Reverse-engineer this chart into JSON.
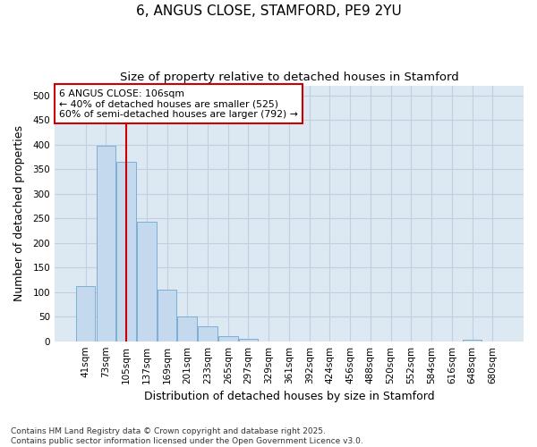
{
  "title": "6, ANGUS CLOSE, STAMFORD, PE9 2YU",
  "subtitle": "Size of property relative to detached houses in Stamford",
  "xlabel": "Distribution of detached houses by size in Stamford",
  "ylabel": "Number of detached properties",
  "categories": [
    "41sqm",
    "73sqm",
    "105sqm",
    "137sqm",
    "169sqm",
    "201sqm",
    "233sqm",
    "265sqm",
    "297sqm",
    "329sqm",
    "361sqm",
    "392sqm",
    "424sqm",
    "456sqm",
    "488sqm",
    "520sqm",
    "552sqm",
    "584sqm",
    "616sqm",
    "648sqm",
    "680sqm"
  ],
  "values": [
    112,
    397,
    365,
    243,
    105,
    50,
    30,
    10,
    5,
    0,
    0,
    0,
    0,
    0,
    0,
    0,
    0,
    0,
    0,
    3,
    0
  ],
  "bar_color": "#c5d9ee",
  "bar_edge_color": "#7bafd4",
  "vertical_line_x": 2.0,
  "vertical_line_color": "#cc0000",
  "annotation_text": "6 ANGUS CLOSE: 106sqm\n← 40% of detached houses are smaller (525)\n60% of semi-detached houses are larger (792) →",
  "annotation_box_facecolor": "#ffffff",
  "annotation_box_edgecolor": "#cc0000",
  "ylim": [
    0,
    520
  ],
  "yticks": [
    0,
    50,
    100,
    150,
    200,
    250,
    300,
    350,
    400,
    450,
    500
  ],
  "grid_color": "#c0d0e0",
  "plot_bg_color": "#dce8f2",
  "fig_bg_color": "#ffffff",
  "footer_text": "Contains HM Land Registry data © Crown copyright and database right 2025.\nContains public sector information licensed under the Open Government Licence v3.0.",
  "title_fontsize": 11,
  "subtitle_fontsize": 9.5,
  "tick_fontsize": 7.5,
  "label_fontsize": 9,
  "footer_fontsize": 6.5
}
